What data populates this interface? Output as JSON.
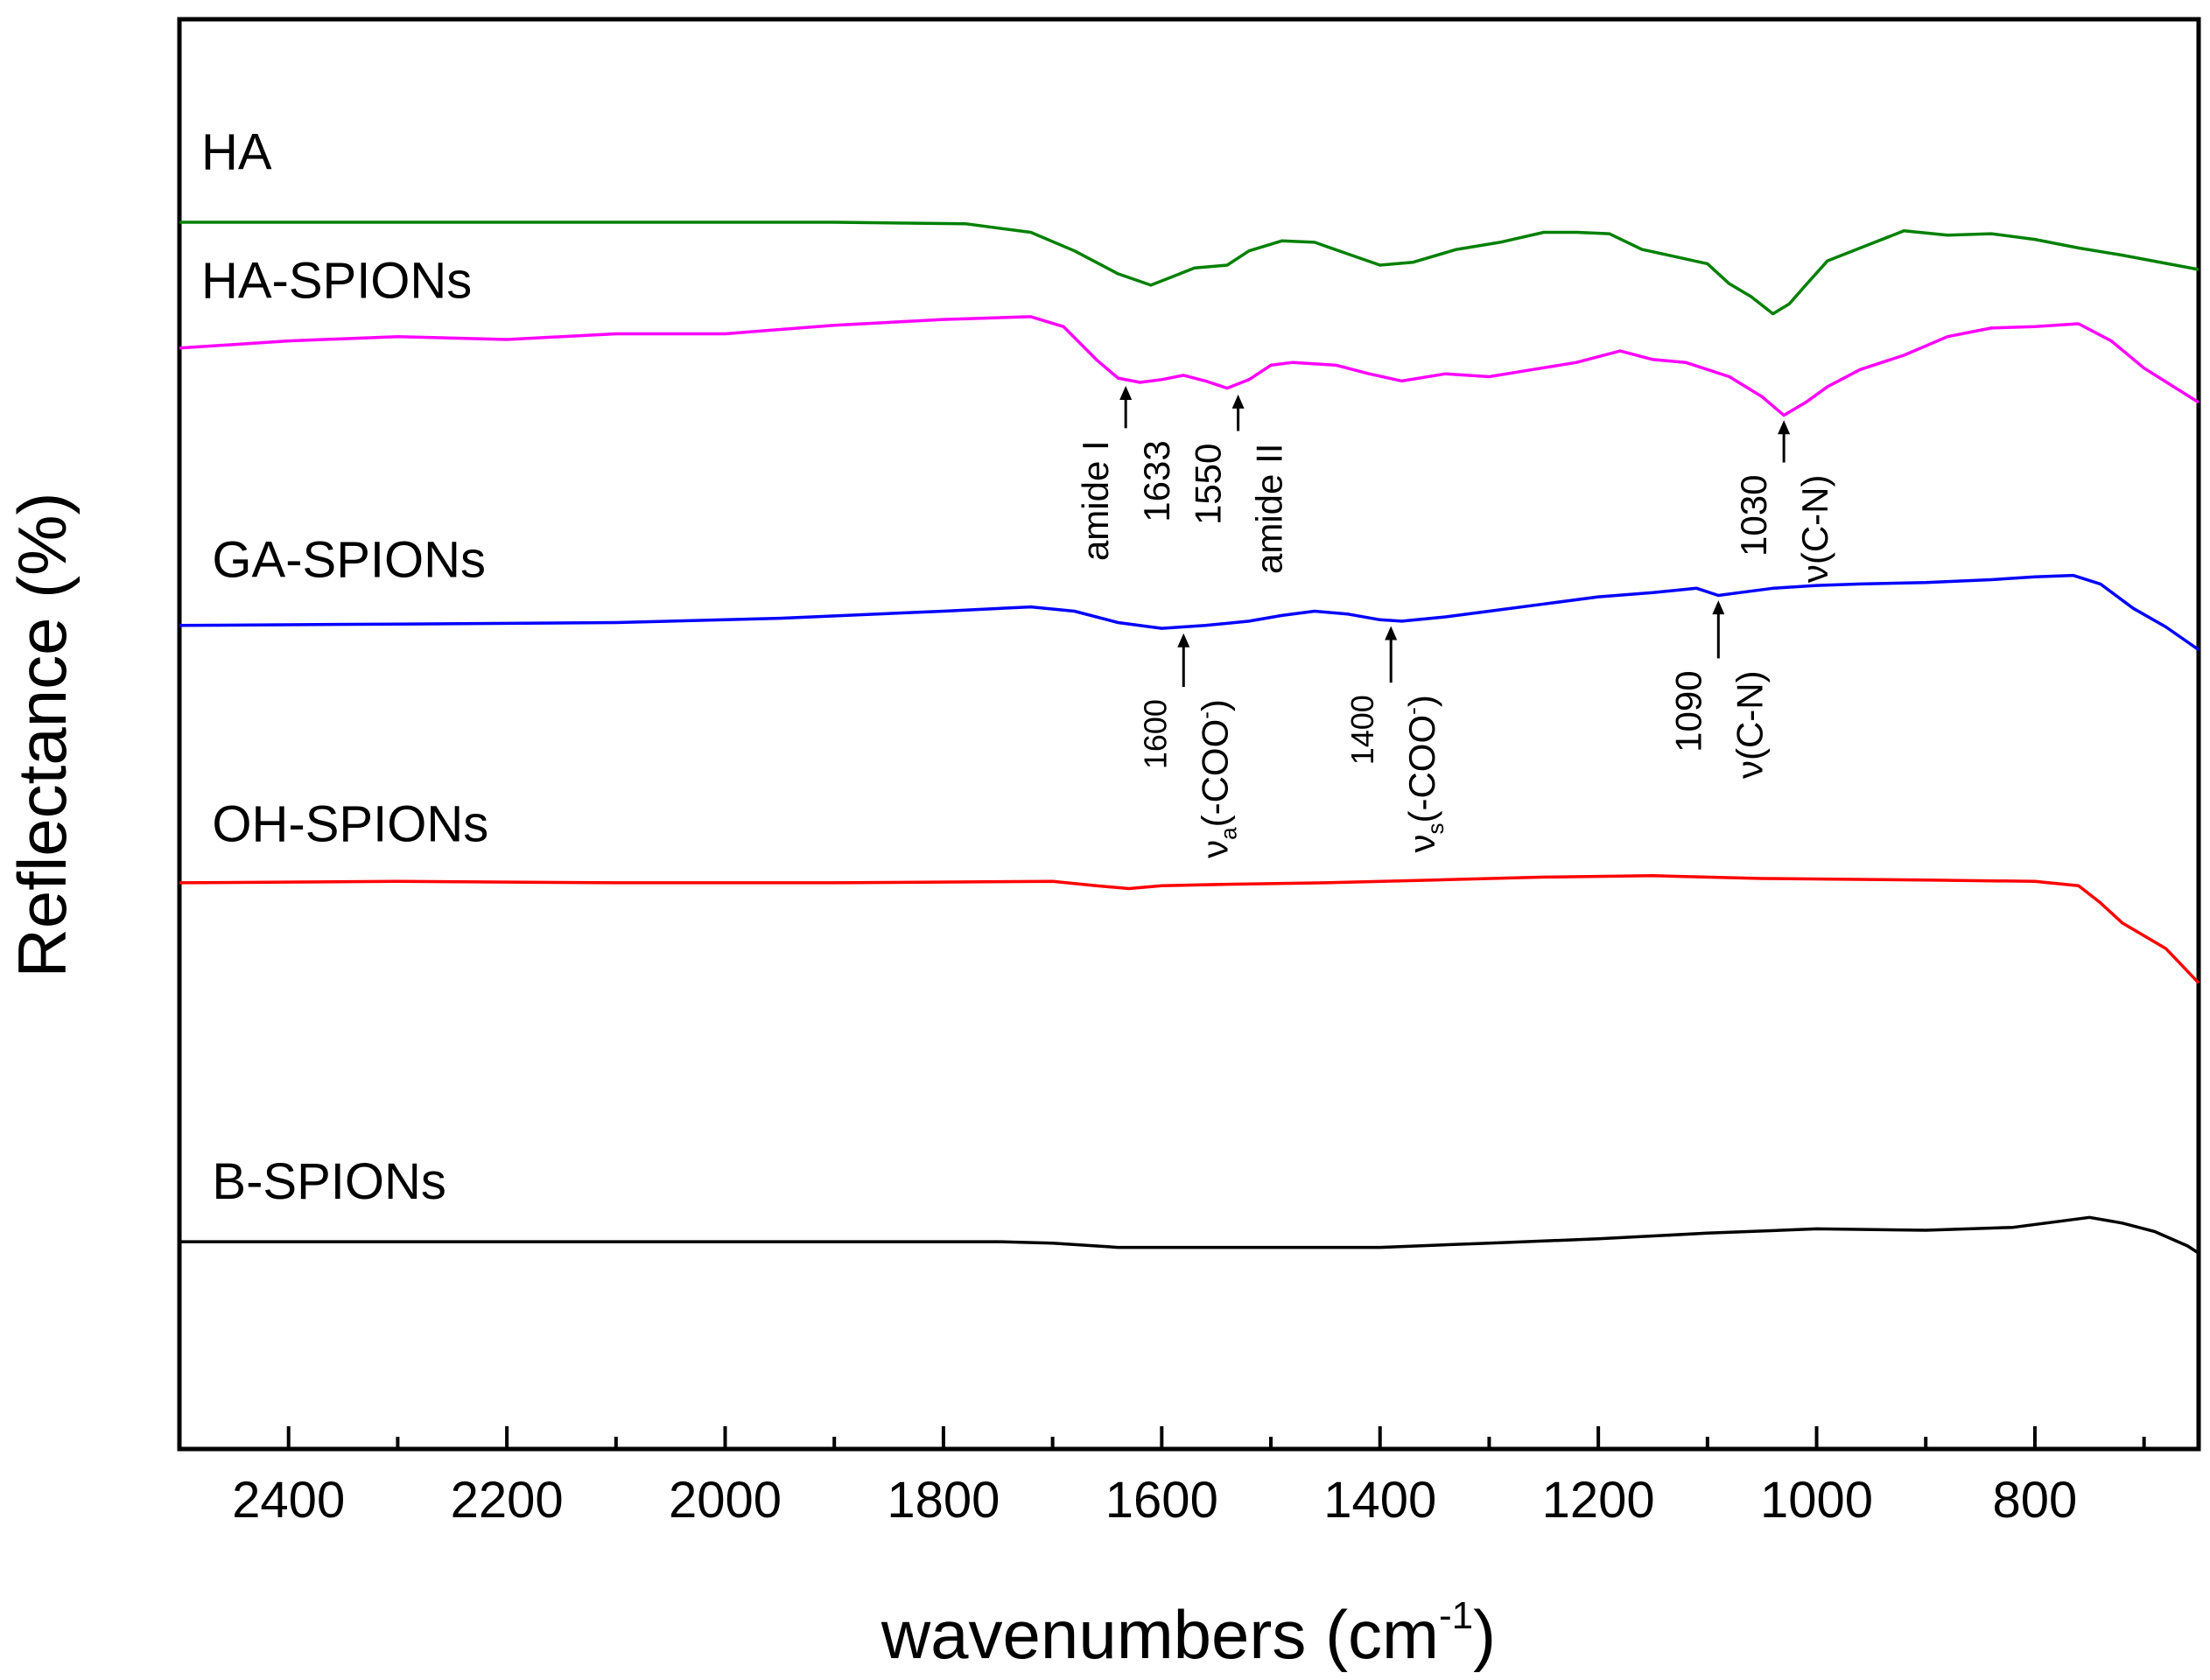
{
  "chart_data": {
    "type": "line",
    "title": "",
    "xlabel": "wavenumbers (cm",
    "xlabel_superscript": "-1",
    "xlabel_close": ")",
    "ylabel": "Reflectance (%)",
    "xlim": [
      2500,
      650
    ],
    "ylim": [
      0,
      100
    ],
    "x_reversed": true,
    "y_ticks_shown": false,
    "x_ticks": [
      2400,
      2200,
      2000,
      1800,
      1600,
      1400,
      1200,
      1000,
      800
    ],
    "x_tick_labels": [
      "2400",
      "2200",
      "2000",
      "1800",
      "1600",
      "1400",
      "1200",
      "1000",
      "800"
    ],
    "x_minor_ticks": [
      2300,
      2100,
      1900,
      1700,
      1500,
      1300,
      1100,
      900,
      700
    ],
    "grid": false,
    "series": [
      {
        "name": "HA",
        "color": "#008000",
        "label_pos": [
          2480,
          89.5
        ],
        "points": [
          [
            2500,
            85.8
          ],
          [
            2300,
            85.8
          ],
          [
            2100,
            85.8
          ],
          [
            1900,
            85.8
          ],
          [
            1780,
            85.7
          ],
          [
            1720,
            85.1
          ],
          [
            1680,
            83.8
          ],
          [
            1640,
            82.2
          ],
          [
            1610,
            81.4
          ],
          [
            1590,
            82.0
          ],
          [
            1570,
            82.6
          ],
          [
            1540,
            82.8
          ],
          [
            1520,
            83.8
          ],
          [
            1490,
            84.5
          ],
          [
            1460,
            84.4
          ],
          [
            1430,
            83.6
          ],
          [
            1400,
            82.8
          ],
          [
            1370,
            83.0
          ],
          [
            1330,
            83.9
          ],
          [
            1290,
            84.4
          ],
          [
            1250,
            85.1
          ],
          [
            1220,
            85.1
          ],
          [
            1190,
            85.0
          ],
          [
            1160,
            83.9
          ],
          [
            1130,
            83.4
          ],
          [
            1100,
            82.9
          ],
          [
            1080,
            81.5
          ],
          [
            1060,
            80.6
          ],
          [
            1040,
            79.4
          ],
          [
            1025,
            80.1
          ],
          [
            1010,
            81.4
          ],
          [
            990,
            83.1
          ],
          [
            960,
            84.0
          ],
          [
            920,
            85.2
          ],
          [
            880,
            84.9
          ],
          [
            840,
            85.0
          ],
          [
            800,
            84.6
          ],
          [
            760,
            84.0
          ],
          [
            720,
            83.5
          ],
          [
            650,
            82.5
          ]
        ]
      },
      {
        "name": "HA-SPIONs",
        "color": "#ff00ff",
        "label_pos": [
          2480,
          80.5
        ],
        "points": [
          [
            2500,
            77.0
          ],
          [
            2400,
            77.5
          ],
          [
            2300,
            77.8
          ],
          [
            2200,
            77.6
          ],
          [
            2100,
            78.0
          ],
          [
            2000,
            78.0
          ],
          [
            1900,
            78.6
          ],
          [
            1800,
            79.0
          ],
          [
            1720,
            79.2
          ],
          [
            1690,
            78.5
          ],
          [
            1660,
            76.2
          ],
          [
            1640,
            74.9
          ],
          [
            1620,
            74.6
          ],
          [
            1600,
            74.8
          ],
          [
            1580,
            75.1
          ],
          [
            1560,
            74.7
          ],
          [
            1540,
            74.2
          ],
          [
            1520,
            74.8
          ],
          [
            1500,
            75.8
          ],
          [
            1480,
            76.0
          ],
          [
            1440,
            75.8
          ],
          [
            1410,
            75.2
          ],
          [
            1380,
            74.7
          ],
          [
            1340,
            75.2
          ],
          [
            1300,
            75.0
          ],
          [
            1260,
            75.5
          ],
          [
            1220,
            76.0
          ],
          [
            1180,
            76.8
          ],
          [
            1150,
            76.2
          ],
          [
            1120,
            76.0
          ],
          [
            1080,
            75.0
          ],
          [
            1050,
            73.6
          ],
          [
            1030,
            72.3
          ],
          [
            1010,
            73.2
          ],
          [
            990,
            74.3
          ],
          [
            960,
            75.5
          ],
          [
            920,
            76.5
          ],
          [
            880,
            77.8
          ],
          [
            840,
            78.4
          ],
          [
            800,
            78.5
          ],
          [
            760,
            78.7
          ],
          [
            730,
            77.5
          ],
          [
            700,
            75.6
          ],
          [
            650,
            73.2
          ]
        ]
      },
      {
        "name": "GA-SPIONs",
        "color": "#0000ff",
        "label_pos": [
          2470,
          61.0
        ],
        "points": [
          [
            2500,
            57.6
          ],
          [
            2300,
            57.7
          ],
          [
            2100,
            57.8
          ],
          [
            1950,
            58.1
          ],
          [
            1800,
            58.6
          ],
          [
            1720,
            58.9
          ],
          [
            1680,
            58.6
          ],
          [
            1640,
            57.8
          ],
          [
            1600,
            57.4
          ],
          [
            1560,
            57.6
          ],
          [
            1520,
            57.9
          ],
          [
            1490,
            58.3
          ],
          [
            1460,
            58.6
          ],
          [
            1430,
            58.4
          ],
          [
            1400,
            58.0
          ],
          [
            1380,
            57.9
          ],
          [
            1340,
            58.2
          ],
          [
            1300,
            58.6
          ],
          [
            1250,
            59.1
          ],
          [
            1200,
            59.6
          ],
          [
            1150,
            59.9
          ],
          [
            1110,
            60.2
          ],
          [
            1090,
            59.7
          ],
          [
            1070,
            59.9
          ],
          [
            1040,
            60.2
          ],
          [
            1000,
            60.4
          ],
          [
            960,
            60.5
          ],
          [
            900,
            60.6
          ],
          [
            840,
            60.8
          ],
          [
            800,
            61.0
          ],
          [
            765,
            61.1
          ],
          [
            740,
            60.5
          ],
          [
            710,
            58.8
          ],
          [
            680,
            57.5
          ],
          [
            650,
            55.9
          ]
        ]
      },
      {
        "name": "OH-SPIONs",
        "color": "#ff0000",
        "label_pos": [
          2470,
          42.5
        ],
        "points": [
          [
            2500,
            39.6
          ],
          [
            2300,
            39.7
          ],
          [
            2100,
            39.6
          ],
          [
            1900,
            39.6
          ],
          [
            1700,
            39.7
          ],
          [
            1660,
            39.4
          ],
          [
            1630,
            39.2
          ],
          [
            1600,
            39.4
          ],
          [
            1540,
            39.5
          ],
          [
            1450,
            39.6
          ],
          [
            1350,
            39.8
          ],
          [
            1250,
            40.0
          ],
          [
            1150,
            40.1
          ],
          [
            1050,
            39.9
          ],
          [
            900,
            39.8
          ],
          [
            800,
            39.7
          ],
          [
            760,
            39.4
          ],
          [
            740,
            38.2
          ],
          [
            720,
            36.8
          ],
          [
            700,
            35.9
          ],
          [
            680,
            35.0
          ],
          [
            650,
            32.6
          ]
        ]
      },
      {
        "name": "B-SPIONs",
        "color": "#000000",
        "label_pos": [
          2470,
          17.5
        ],
        "points": [
          [
            2500,
            14.5
          ],
          [
            2300,
            14.5
          ],
          [
            2100,
            14.5
          ],
          [
            1900,
            14.5
          ],
          [
            1750,
            14.5
          ],
          [
            1700,
            14.4
          ],
          [
            1640,
            14.1
          ],
          [
            1600,
            14.1
          ],
          [
            1500,
            14.1
          ],
          [
            1400,
            14.1
          ],
          [
            1300,
            14.4
          ],
          [
            1200,
            14.7
          ],
          [
            1100,
            15.1
          ],
          [
            1000,
            15.4
          ],
          [
            900,
            15.3
          ],
          [
            820,
            15.5
          ],
          [
            780,
            15.9
          ],
          [
            750,
            16.2
          ],
          [
            720,
            15.8
          ],
          [
            690,
            15.2
          ],
          [
            660,
            14.2
          ],
          [
            650,
            13.7
          ]
        ]
      }
    ],
    "annotations": [
      {
        "arrow_x": 1633,
        "arrow_y_tip": 74.6,
        "arrow_y_base": 71.4,
        "lines": [
          "amide I",
          "1633"
        ],
        "color": "#000000"
      },
      {
        "arrow_x": 1530,
        "arrow_y_tip": 74.0,
        "arrow_y_base": 71.2,
        "lines": [
          "1550",
          "amide II"
        ],
        "color": "#000000"
      },
      {
        "arrow_x": 1030,
        "arrow_y_tip": 72.2,
        "arrow_y_base": 69.0,
        "lines": [
          "1030",
          "ν(C-N)"
        ],
        "color": "#000000"
      },
      {
        "arrow_x": 1580,
        "arrow_y_tip": 57.3,
        "arrow_y_base": 53.3,
        "lines": [
          "1600",
          "ν(-COO )"
        ],
        "sub": "a",
        "sup": "-",
        "color": "#000000"
      },
      {
        "arrow_x": 1390,
        "arrow_y_tip": 57.8,
        "arrow_y_base": 53.6,
        "lines": [
          "1400",
          "ν(-COO )"
        ],
        "sub": "s",
        "sup": "-",
        "color": "#000000"
      },
      {
        "arrow_x": 1090,
        "arrow_y_tip": 59.6,
        "arrow_y_base": 55.3,
        "lines": [
          "1090",
          "ν(C-N)"
        ],
        "color": "#000000"
      }
    ]
  }
}
